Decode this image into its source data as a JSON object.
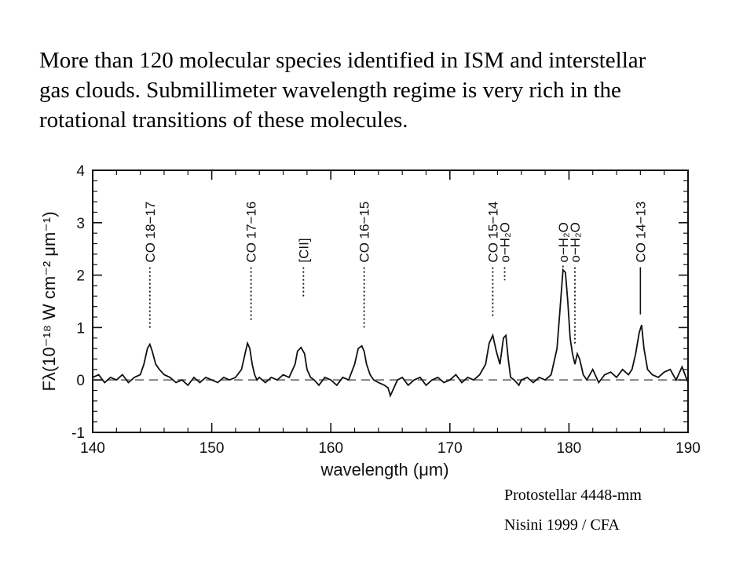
{
  "headline": {
    "line1": "More than 120 molecular species identified in ISM and interstellar",
    "line2": "gas clouds.  Submillimeter wavelength regime is very rich in the",
    "line3": "rotational transitions of these molecules."
  },
  "captions": {
    "source": "Protostellar 4448-mm",
    "credit": "Nisini 1999 / CFA"
  },
  "chart_data": {
    "type": "line",
    "xlabel": "wavelength (μm)",
    "ylabel": "Fλ(10⁻¹⁸ W cm⁻² μm⁻¹)",
    "xlim": [
      140,
      190
    ],
    "ylim": [
      -1,
      4
    ],
    "xticks": [
      140,
      150,
      160,
      170,
      180,
      190
    ],
    "yticks": [
      -1,
      0,
      1,
      2,
      3,
      4
    ],
    "baseline": 0,
    "grid": false,
    "lines": [
      {
        "label": "CO 18−17",
        "x": 144.8,
        "style": "dotted"
      },
      {
        "label": "CO 17−16",
        "x": 153.3,
        "style": "dotted"
      },
      {
        "label": "[CII]",
        "x": 157.7,
        "style": "dotted"
      },
      {
        "label": "CO 16−15",
        "x": 162.8,
        "style": "dotted"
      },
      {
        "label": "CO 15−14",
        "x": 173.6,
        "style": "dotted"
      },
      {
        "label": "o−H₂O",
        "x": 174.6,
        "style": "dotted"
      },
      {
        "label": "o−H₂O",
        "x": 179.5,
        "style": "dotted"
      },
      {
        "label": "o−H₂O",
        "x": 180.5,
        "style": "dotted"
      },
      {
        "label": "CO 14−13",
        "x": 186.0,
        "style": "solid"
      }
    ],
    "series": [
      {
        "x": [
          140.0,
          140.5,
          141.0,
          141.5,
          142.0,
          142.5,
          143.0,
          143.5,
          144.0,
          144.3,
          144.6,
          144.8,
          145.0,
          145.3,
          145.6,
          146.0,
          146.5,
          147.0,
          147.5,
          148.0,
          148.5,
          149.0,
          149.5,
          150.0,
          150.5,
          151.0,
          151.5,
          152.0,
          152.5,
          152.8,
          153.0,
          153.2,
          153.4,
          153.6,
          153.8,
          154.0,
          154.5,
          155.0,
          155.5,
          156.0,
          156.5,
          157.0,
          157.2,
          157.5,
          157.8,
          158.0,
          158.3,
          158.6,
          159.0,
          159.5,
          160.0,
          160.5,
          161.0,
          161.5,
          162.0,
          162.3,
          162.6,
          162.8,
          163.0,
          163.3,
          163.6,
          164.0,
          164.5,
          164.8,
          165.0,
          165.3,
          165.6,
          166.0,
          166.5,
          167.0,
          167.5,
          168.0,
          168.5,
          169.0,
          169.5,
          170.0,
          170.5,
          171.0,
          171.5,
          172.0,
          172.5,
          173.0,
          173.3,
          173.6,
          173.9,
          174.2,
          174.5,
          174.7,
          174.9,
          175.1,
          175.4,
          175.8,
          176.0,
          176.5,
          177.0,
          177.5,
          178.0,
          178.5,
          179.0,
          179.3,
          179.5,
          179.7,
          179.9,
          180.1,
          180.3,
          180.5,
          180.7,
          180.9,
          181.2,
          181.5,
          182.0,
          182.5,
          183.0,
          183.5,
          184.0,
          184.5,
          185.0,
          185.3,
          185.6,
          185.9,
          186.1,
          186.3,
          186.6,
          187.0,
          187.5,
          188.0,
          188.5,
          189.0,
          189.5,
          190.0
        ],
        "y": [
          0.05,
          0.1,
          -0.05,
          0.05,
          0.0,
          0.1,
          -0.05,
          0.05,
          0.1,
          0.3,
          0.6,
          0.68,
          0.55,
          0.3,
          0.2,
          0.1,
          0.05,
          -0.05,
          0.0,
          -0.1,
          0.05,
          -0.05,
          0.05,
          0.0,
          -0.05,
          0.05,
          0.0,
          0.05,
          0.2,
          0.5,
          0.7,
          0.6,
          0.3,
          0.1,
          0.0,
          0.05,
          -0.05,
          0.05,
          0.0,
          0.1,
          0.05,
          0.3,
          0.55,
          0.62,
          0.5,
          0.2,
          0.05,
          0.0,
          -0.1,
          0.05,
          0.0,
          -0.1,
          0.05,
          0.0,
          0.3,
          0.6,
          0.65,
          0.55,
          0.3,
          0.1,
          0.0,
          -0.05,
          -0.1,
          -0.15,
          -0.3,
          -0.15,
          0.0,
          0.05,
          -0.1,
          0.0,
          0.05,
          -0.1,
          0.0,
          0.05,
          -0.05,
          0.0,
          0.1,
          -0.05,
          0.05,
          0.0,
          0.1,
          0.3,
          0.7,
          0.85,
          0.55,
          0.3,
          0.8,
          0.85,
          0.4,
          0.05,
          0.0,
          -0.1,
          0.0,
          0.05,
          -0.05,
          0.05,
          0.0,
          0.1,
          0.6,
          1.5,
          2.1,
          2.05,
          1.5,
          0.8,
          0.5,
          0.3,
          0.5,
          0.4,
          0.1,
          0.0,
          0.2,
          -0.05,
          0.1,
          0.15,
          0.05,
          0.2,
          0.1,
          0.2,
          0.5,
          0.9,
          1.05,
          0.6,
          0.2,
          0.1,
          0.05,
          0.15,
          0.2,
          0.0,
          0.25,
          -0.05
        ]
      }
    ]
  }
}
